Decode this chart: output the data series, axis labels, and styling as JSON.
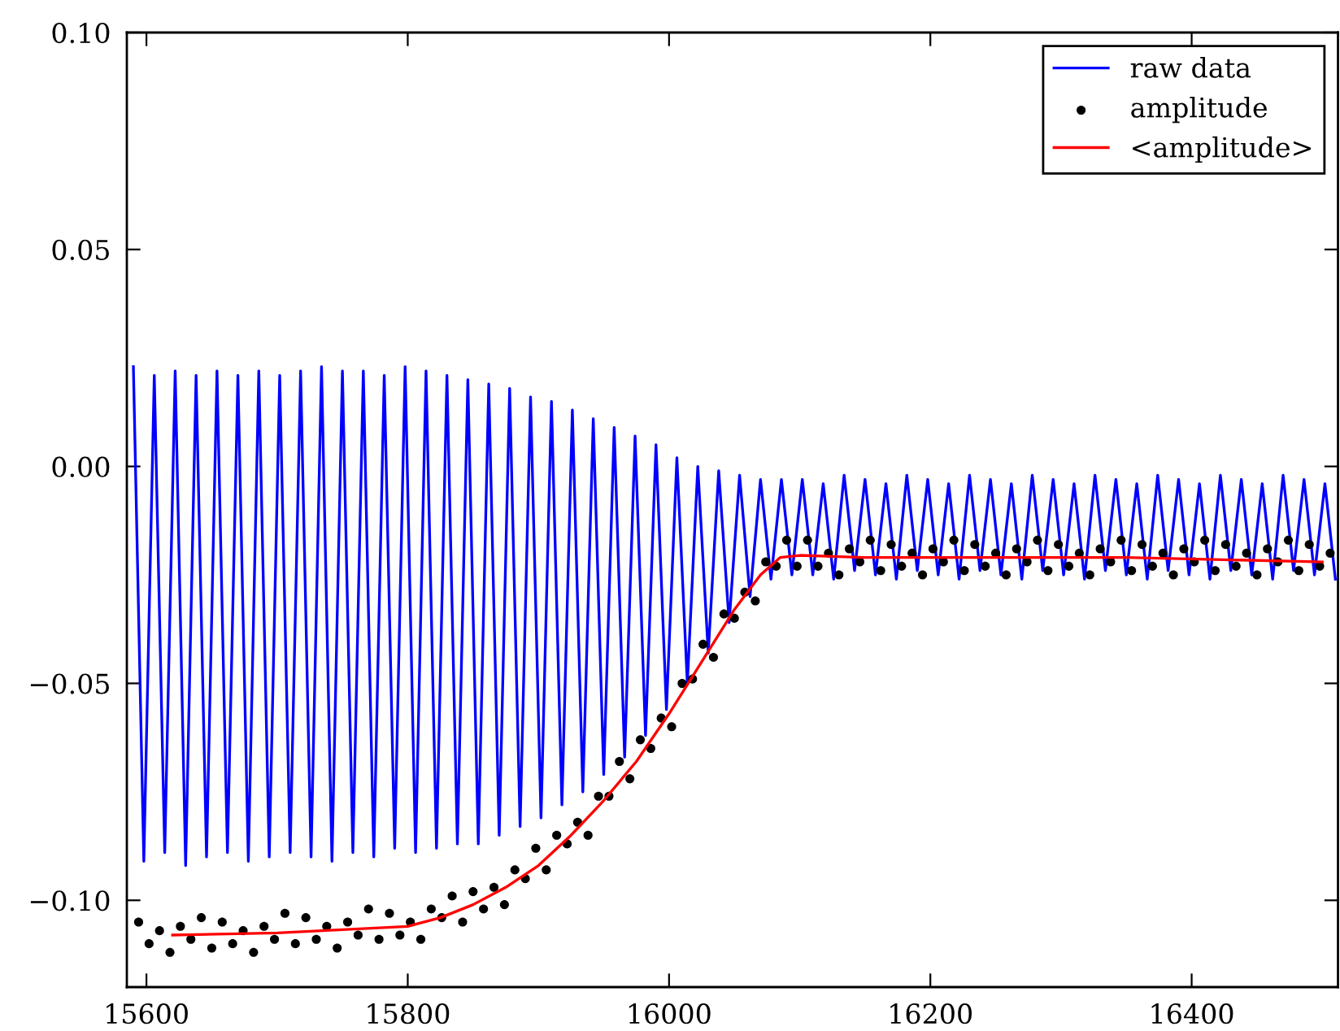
{
  "chart_data": {
    "type": "line",
    "xlim": [
      15585,
      16512
    ],
    "ylim": [
      -0.12,
      0.1
    ],
    "xticks": [
      15600,
      15800,
      16000,
      16200,
      16400
    ],
    "yticks": [
      {
        "value": -0.1,
        "label": "−0.10"
      },
      {
        "value": -0.05,
        "label": "−0.05"
      },
      {
        "value": 0.0,
        "label": "0.00"
      },
      {
        "value": 0.05,
        "label": "0.05"
      },
      {
        "value": 0.1,
        "label": "0.10"
      }
    ],
    "grid": false,
    "legend": "top right",
    "series": [
      {
        "name": "raw data",
        "color": "#0000ff",
        "line_style": "solid",
        "marker": "none",
        "x": [
          15590,
          15598,
          15606,
          15614,
          15622,
          15630,
          15638,
          15646,
          15654,
          15662,
          15670,
          15678,
          15686,
          15694,
          15702,
          15710,
          15718,
          15726,
          15734,
          15742,
          15750,
          15758,
          15766,
          15774,
          15782,
          15790,
          15798,
          15806,
          15814,
          15822,
          15830,
          15838,
          15846,
          15854,
          15862,
          15870,
          15878,
          15886,
          15894,
          15902,
          15910,
          15918,
          15926,
          15934,
          15942,
          15950,
          15958,
          15966,
          15974,
          15982,
          15990,
          15998,
          16006,
          16014,
          16022,
          16030,
          16038,
          16046,
          16054,
          16062,
          16070,
          16078,
          16086,
          16094,
          16102,
          16110,
          16118,
          16126,
          16134,
          16142,
          16150,
          16158,
          16166,
          16174,
          16182,
          16190,
          16198,
          16206,
          16214,
          16222,
          16230,
          16238,
          16246,
          16254,
          16262,
          16270,
          16278,
          16286,
          16294,
          16302,
          16310,
          16318,
          16326,
          16334,
          16342,
          16350,
          16358,
          16366,
          16374,
          16382,
          16390,
          16398,
          16406,
          16414,
          16422,
          16430,
          16438,
          16446,
          16454,
          16462,
          16470,
          16478,
          16486,
          16494,
          16502,
          16510
        ],
        "values": [
          0.023,
          -0.091,
          0.021,
          -0.089,
          0.022,
          -0.092,
          0.021,
          -0.09,
          0.022,
          -0.089,
          0.021,
          -0.091,
          0.022,
          -0.09,
          0.021,
          -0.089,
          0.022,
          -0.09,
          0.023,
          -0.091,
          0.022,
          -0.089,
          0.022,
          -0.09,
          0.021,
          -0.088,
          0.023,
          -0.089,
          0.022,
          -0.088,
          0.021,
          -0.087,
          0.02,
          -0.087,
          0.019,
          -0.085,
          0.018,
          -0.083,
          0.016,
          -0.081,
          0.015,
          -0.078,
          0.013,
          -0.075,
          0.011,
          -0.071,
          0.009,
          -0.067,
          0.007,
          -0.062,
          0.005,
          -0.056,
          0.002,
          -0.05,
          0.0,
          -0.043,
          -0.001,
          -0.036,
          -0.002,
          -0.03,
          -0.003,
          -0.026,
          -0.003,
          -0.025,
          -0.003,
          -0.025,
          -0.004,
          -0.026,
          -0.002,
          -0.024,
          -0.003,
          -0.025,
          -0.004,
          -0.026,
          -0.002,
          -0.024,
          -0.003,
          -0.025,
          -0.004,
          -0.026,
          -0.002,
          -0.024,
          -0.003,
          -0.025,
          -0.004,
          -0.026,
          -0.002,
          -0.024,
          -0.003,
          -0.025,
          -0.004,
          -0.026,
          -0.002,
          -0.024,
          -0.003,
          -0.025,
          -0.004,
          -0.026,
          -0.002,
          -0.024,
          -0.003,
          -0.025,
          -0.004,
          -0.026,
          -0.002,
          -0.024,
          -0.003,
          -0.025,
          -0.004,
          -0.026,
          -0.002,
          -0.024,
          -0.003,
          -0.025,
          -0.004,
          -0.026
        ]
      },
      {
        "name": "amplitude",
        "type": "scatter",
        "color": "#000000",
        "marker": "circle",
        "x": [
          15594,
          15602,
          15610,
          15618,
          15626,
          15634,
          15642,
          15650,
          15658,
          15666,
          15674,
          15682,
          15690,
          15698,
          15706,
          15714,
          15722,
          15730,
          15738,
          15746,
          15754,
          15762,
          15770,
          15778,
          15786,
          15794,
          15802,
          15810,
          15818,
          15826,
          15834,
          15842,
          15850,
          15858,
          15866,
          15874,
          15882,
          15890,
          15898,
          15906,
          15914,
          15922,
          15930,
          15938,
          15946,
          15954,
          15962,
          15970,
          15978,
          15986,
          15994,
          16002,
          16010,
          16018,
          16026,
          16034,
          16042,
          16050,
          16058,
          16066,
          16074,
          16082,
          16090,
          16098,
          16106,
          16114,
          16122,
          16130,
          16138,
          16146,
          16154,
          16162,
          16170,
          16178,
          16186,
          16194,
          16202,
          16210,
          16218,
          16226,
          16234,
          16242,
          16250,
          16258,
          16266,
          16274,
          16282,
          16290,
          16298,
          16306,
          16314,
          16322,
          16330,
          16338,
          16346,
          16354,
          16362,
          16370,
          16378,
          16386,
          16394,
          16402,
          16410,
          16418,
          16426,
          16434,
          16442,
          16450,
          16458,
          16466,
          16474,
          16482,
          16490,
          16498,
          16506
        ],
        "values": [
          -0.105,
          -0.11,
          -0.107,
          -0.112,
          -0.106,
          -0.109,
          -0.104,
          -0.111,
          -0.105,
          -0.11,
          -0.107,
          -0.112,
          -0.106,
          -0.109,
          -0.103,
          -0.11,
          -0.104,
          -0.109,
          -0.106,
          -0.111,
          -0.105,
          -0.108,
          -0.102,
          -0.109,
          -0.103,
          -0.108,
          -0.105,
          -0.109,
          -0.102,
          -0.104,
          -0.099,
          -0.105,
          -0.098,
          -0.102,
          -0.097,
          -0.101,
          -0.093,
          -0.095,
          -0.088,
          -0.093,
          -0.085,
          -0.087,
          -0.082,
          -0.085,
          -0.076,
          -0.076,
          -0.068,
          -0.072,
          -0.063,
          -0.065,
          -0.058,
          -0.06,
          -0.05,
          -0.049,
          -0.041,
          -0.044,
          -0.034,
          -0.035,
          -0.029,
          -0.031,
          -0.022,
          -0.023,
          -0.017,
          -0.023,
          -0.017,
          -0.023,
          -0.02,
          -0.025,
          -0.019,
          -0.022,
          -0.017,
          -0.024,
          -0.018,
          -0.023,
          -0.02,
          -0.025,
          -0.019,
          -0.022,
          -0.017,
          -0.024,
          -0.018,
          -0.023,
          -0.02,
          -0.025,
          -0.019,
          -0.022,
          -0.017,
          -0.024,
          -0.018,
          -0.023,
          -0.02,
          -0.025,
          -0.019,
          -0.022,
          -0.017,
          -0.024,
          -0.018,
          -0.023,
          -0.02,
          -0.025,
          -0.019,
          -0.022,
          -0.017,
          -0.024,
          -0.018,
          -0.023,
          -0.02,
          -0.025,
          -0.019,
          -0.022,
          -0.017,
          -0.024,
          -0.018,
          -0.023,
          -0.02
        ]
      },
      {
        "name": "<amplitude>",
        "color": "#ff0000",
        "line_style": "solid",
        "marker": "none",
        "x": [
          15620,
          15700,
          15800,
          15825,
          15850,
          15875,
          15900,
          15925,
          15950,
          15975,
          16000,
          16025,
          16050,
          16070,
          16085,
          16100,
          16150,
          16250,
          16350,
          16500
        ],
        "values": [
          -0.108,
          -0.1075,
          -0.106,
          -0.104,
          -0.101,
          -0.097,
          -0.092,
          -0.085,
          -0.077,
          -0.068,
          -0.057,
          -0.045,
          -0.033,
          -0.025,
          -0.021,
          -0.0205,
          -0.021,
          -0.021,
          -0.021,
          -0.022
        ]
      }
    ]
  }
}
